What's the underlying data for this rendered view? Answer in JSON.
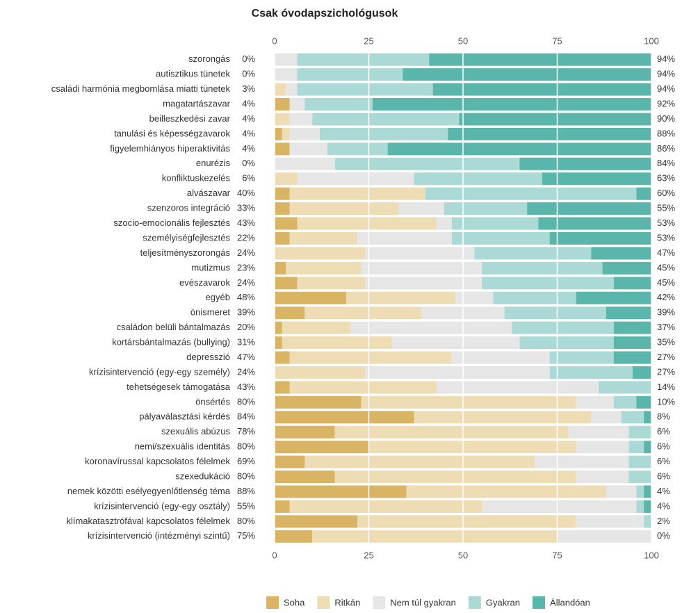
{
  "chart_data": {
    "type": "stacked-bar-horizontal",
    "title": "Csak óvodapszichológusok",
    "categories": [
      "szorongás",
      "autisztikus tünetek",
      "családi harmónia megbomlása miatti tünetek",
      "magatartászavar",
      "beilleszkedési zavar",
      "tanulási és képességzavarok",
      "figyelemhiányos hiperaktivitás",
      "enurézis",
      "konfliktuskezelés",
      "alvászavar",
      "szenzoros integráció",
      "szocio-emocionális fejlesztés",
      "személyiségfejlesztés",
      "teljesítményszorongás",
      "mutizmus",
      "evészavarok",
      "egyéb",
      "önismeret",
      "családon belüli bántalmazás",
      "kortársbántalmazás (bullying)",
      "depresszió",
      "krízisintervenció (egy-egy személy)",
      "tehetségesek támogatása",
      "önsértés",
      "pályaválasztási kérdés",
      "szexuális abúzus",
      "nemi/szexuális identitás",
      "koronavírussal kapcsolatos félelmek",
      "szexedukáció",
      "nemek közötti esélyegyenlőtlenség téma",
      "krízisintervenció (egy-egy osztály)",
      "klímakatasztrófával kapcsolatos félelmek",
      "krízisintervenció (intézményi szintű)"
    ],
    "left_labels": [
      "0%",
      "0%",
      "3%",
      "4%",
      "4%",
      "4%",
      "4%",
      "0%",
      "6%",
      "40%",
      "33%",
      "43%",
      "22%",
      "24%",
      "23%",
      "24%",
      "48%",
      "39%",
      "20%",
      "31%",
      "47%",
      "24%",
      "43%",
      "80%",
      "84%",
      "78%",
      "80%",
      "69%",
      "80%",
      "88%",
      "55%",
      "80%",
      "75%"
    ],
    "right_labels": [
      "94%",
      "94%",
      "94%",
      "92%",
      "90%",
      "88%",
      "86%",
      "84%",
      "63%",
      "60%",
      "55%",
      "53%",
      "53%",
      "47%",
      "45%",
      "45%",
      "42%",
      "39%",
      "37%",
      "35%",
      "27%",
      "27%",
      "14%",
      "10%",
      "8%",
      "6%",
      "6%",
      "6%",
      "6%",
      "4%",
      "4%",
      "2%",
      "0%"
    ],
    "series": [
      {
        "name": "Soha",
        "color": "#d9b465",
        "values": [
          0,
          0,
          0,
          4,
          0,
          2,
          4,
          0,
          0,
          4,
          4,
          6,
          4,
          0,
          3,
          6,
          19,
          8,
          2,
          2,
          4,
          0,
          4,
          23,
          37,
          16,
          25,
          8,
          16,
          35,
          4,
          22,
          10
        ]
      },
      {
        "name": "Ritkán",
        "color": "#eedcb4",
        "values": [
          0,
          0,
          3,
          0,
          4,
          2,
          0,
          0,
          6,
          36,
          29,
          37,
          18,
          24,
          20,
          18,
          29,
          31,
          18,
          29,
          43,
          24,
          39,
          57,
          47,
          62,
          55,
          61,
          64,
          53,
          51,
          58,
          65
        ]
      },
      {
        "name": "Nem túl gyakran",
        "color": "#e6e6e6",
        "values": [
          6,
          6,
          3,
          4,
          6,
          8,
          10,
          16,
          31,
          0,
          12,
          4,
          25,
          29,
          32,
          31,
          10,
          22,
          43,
          34,
          26,
          49,
          43,
          10,
          8,
          16,
          14,
          25,
          14,
          8,
          41,
          18,
          25
        ]
      },
      {
        "name": "Gyakran",
        "color": "#abd9d5",
        "values": [
          35,
          28,
          36,
          18,
          39,
          34,
          16,
          49,
          34,
          56,
          22,
          23,
          26,
          31,
          32,
          35,
          22,
          27,
          27,
          25,
          17,
          22,
          14,
          6,
          6,
          6,
          4,
          6,
          6,
          2,
          2,
          2,
          0
        ]
      },
      {
        "name": "Állandóan",
        "color": "#5ab5ab",
        "values": [
          59,
          66,
          58,
          74,
          51,
          54,
          70,
          35,
          29,
          4,
          33,
          30,
          27,
          16,
          13,
          10,
          20,
          12,
          10,
          10,
          10,
          5,
          0,
          4,
          2,
          0,
          2,
          0,
          0,
          2,
          2,
          0,
          0
        ]
      }
    ],
    "xlim": [
      0,
      100
    ],
    "xticks": [
      0,
      25,
      50,
      75,
      100
    ],
    "grid": true
  }
}
